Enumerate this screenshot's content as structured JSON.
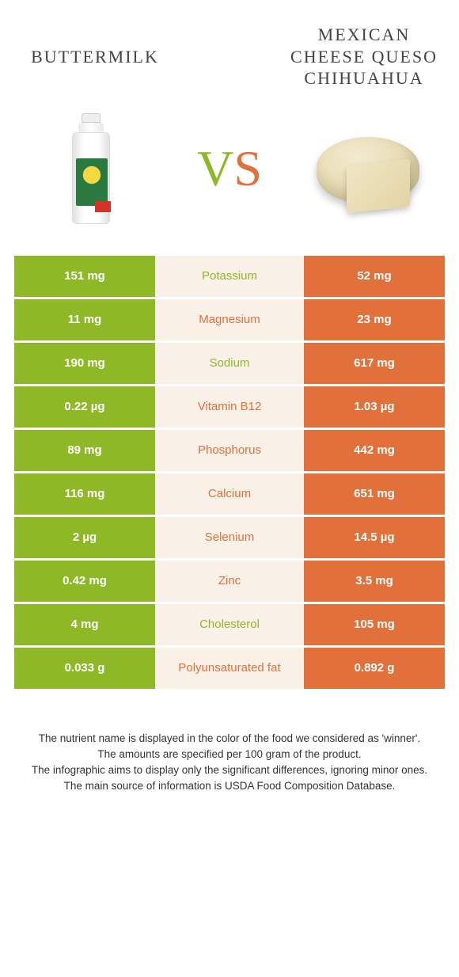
{
  "foods": {
    "left": "Buttermilk",
    "right": "Mexican cheese queso chihuahua"
  },
  "vs": {
    "v": "V",
    "s": "S"
  },
  "colors": {
    "green": "#8fb827",
    "orange": "#e2703a",
    "mid_bg": "#f9f0e8"
  },
  "rows": [
    {
      "left": "151 mg",
      "nutrient": "Potassium",
      "right": "52 mg",
      "winner": "left"
    },
    {
      "left": "11 mg",
      "nutrient": "Magnesium",
      "right": "23 mg",
      "winner": "right"
    },
    {
      "left": "190 mg",
      "nutrient": "Sodium",
      "right": "617 mg",
      "winner": "left"
    },
    {
      "left": "0.22 µg",
      "nutrient": "Vitamin B12",
      "right": "1.03 µg",
      "winner": "right"
    },
    {
      "left": "89 mg",
      "nutrient": "Phosphorus",
      "right": "442 mg",
      "winner": "right"
    },
    {
      "left": "116 mg",
      "nutrient": "Calcium",
      "right": "651 mg",
      "winner": "right"
    },
    {
      "left": "2 µg",
      "nutrient": "Selenium",
      "right": "14.5 µg",
      "winner": "right"
    },
    {
      "left": "0.42 mg",
      "nutrient": "Zinc",
      "right": "3.5 mg",
      "winner": "right"
    },
    {
      "left": "4 mg",
      "nutrient": "Cholesterol",
      "right": "105 mg",
      "winner": "left"
    },
    {
      "left": "0.033 g",
      "nutrient": "Polyunsaturated fat",
      "right": "0.892 g",
      "winner": "right"
    }
  ],
  "footer": {
    "l1": "The nutrient name is displayed in the color of the food we considered as 'winner'.",
    "l2": "The amounts are specified per 100 gram of the product.",
    "l3": "The infographic aims to display only the significant differences, ignoring minor ones.",
    "l4": "The main source of information is USDA Food Composition Database."
  }
}
